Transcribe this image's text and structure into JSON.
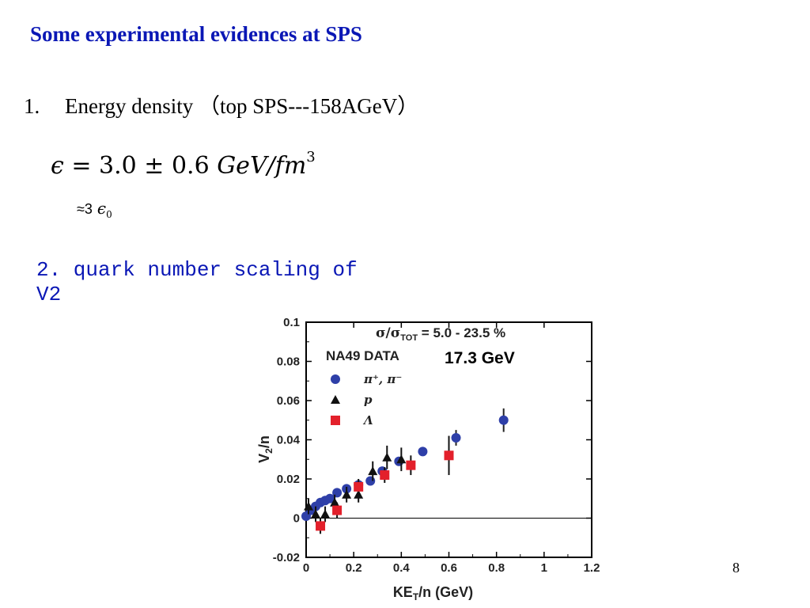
{
  "slide": {
    "title": "Some experimental evidences at SPS",
    "item1_number": "1.",
    "item1_text": "Energy density （top SPS---158AGeV）",
    "formula": {
      "lhs": "ϵ",
      "eq": "= 3.0 ± 0.6",
      "unit": "GeV/fm",
      "exp": "3"
    },
    "approx": {
      "prefix": "≈3",
      "symbol": "ϵ",
      "sub": "0"
    },
    "item2_line1": "2. quark number scaling of",
    "item2_line2": "V2",
    "page_number": "8"
  },
  "colors": {
    "title": "#0a17b5",
    "pion": "#2e3fa8",
    "proton": "#111111",
    "lambda": "#e3202b",
    "highlight_label_bg": "#ffffff"
  },
  "chart_data": {
    "type": "scatter",
    "xlabel": "KE",
    "xlabel_sub": "T",
    "xlabel_tail": "/n (GeV)",
    "ylabel": "V",
    "ylabel_sub": "2",
    "ylabel_tail": "/n",
    "xlim": [
      0,
      1.2
    ],
    "ylim": [
      -0.02,
      0.1
    ],
    "x_ticks": [
      0,
      0.2,
      0.4,
      0.6,
      0.8,
      1,
      1.2
    ],
    "x_tick_labels": [
      "0",
      "0.2",
      "0.4",
      "0.6",
      "0.8",
      "1",
      "1.2"
    ],
    "y_ticks": [
      -0.02,
      0,
      0.02,
      0.04,
      0.06,
      0.08,
      0.1
    ],
    "y_tick_labels": [
      "-0.02",
      "0",
      "0.02",
      "0.04",
      "0.06",
      "0.08",
      "0.1"
    ],
    "zero_line": 0,
    "annotations": {
      "centrality_sigma": "σ/σ",
      "centrality_sub": "TOT",
      "centrality_tail": "= 5.0 - 23.5 %",
      "dataset": "NA49 DATA",
      "energy": "17.3 GeV"
    },
    "legend_position": "top-left",
    "series": [
      {
        "name": "π⁺, π⁻",
        "marker": "circle",
        "points": [
          {
            "x": 0.0,
            "y": 0.001,
            "err": 0.002
          },
          {
            "x": 0.02,
            "y": 0.004,
            "err": 0.002
          },
          {
            "x": 0.04,
            "y": 0.006,
            "err": 0.002
          },
          {
            "x": 0.06,
            "y": 0.008,
            "err": 0.002
          },
          {
            "x": 0.08,
            "y": 0.009,
            "err": 0.002
          },
          {
            "x": 0.1,
            "y": 0.01,
            "err": 0.002
          },
          {
            "x": 0.13,
            "y": 0.013,
            "err": 0.002
          },
          {
            "x": 0.17,
            "y": 0.015,
            "err": 0.002
          },
          {
            "x": 0.22,
            "y": 0.017,
            "err": 0.002
          },
          {
            "x": 0.27,
            "y": 0.019,
            "err": 0.002
          },
          {
            "x": 0.32,
            "y": 0.024,
            "err": 0.002
          },
          {
            "x": 0.39,
            "y": 0.029,
            "err": 0.002
          },
          {
            "x": 0.49,
            "y": 0.034,
            "err": 0.002
          },
          {
            "x": 0.63,
            "y": 0.041,
            "err": 0.004
          },
          {
            "x": 0.83,
            "y": 0.05,
            "err": 0.006
          }
        ]
      },
      {
        "name": "p",
        "marker": "triangle",
        "points": [
          {
            "x": 0.01,
            "y": 0.006,
            "err": 0.004
          },
          {
            "x": 0.04,
            "y": 0.002,
            "err": 0.004
          },
          {
            "x": 0.08,
            "y": 0.002,
            "err": 0.004
          },
          {
            "x": 0.12,
            "y": 0.008,
            "err": 0.004
          },
          {
            "x": 0.17,
            "y": 0.012,
            "err": 0.004
          },
          {
            "x": 0.22,
            "y": 0.012,
            "err": 0.004
          },
          {
            "x": 0.28,
            "y": 0.024,
            "err": 0.005
          },
          {
            "x": 0.34,
            "y": 0.031,
            "err": 0.006
          },
          {
            "x": 0.4,
            "y": 0.03,
            "err": 0.006
          }
        ]
      },
      {
        "name": "Λ",
        "marker": "square",
        "points": [
          {
            "x": 0.06,
            "y": -0.004,
            "err": 0.004
          },
          {
            "x": 0.13,
            "y": 0.004,
            "err": 0.004
          },
          {
            "x": 0.22,
            "y": 0.016,
            "err": 0.004
          },
          {
            "x": 0.33,
            "y": 0.022,
            "err": 0.004
          },
          {
            "x": 0.44,
            "y": 0.027,
            "err": 0.005
          },
          {
            "x": 0.6,
            "y": 0.032,
            "err": 0.01
          }
        ]
      }
    ]
  }
}
